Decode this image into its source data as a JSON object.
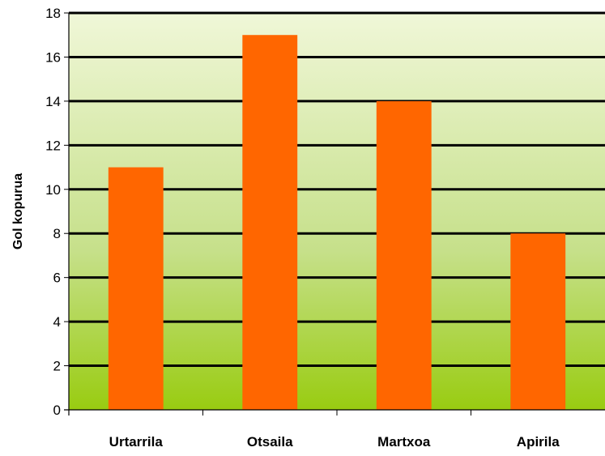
{
  "chart_data": {
    "type": "bar",
    "title": "",
    "xlabel": "",
    "ylabel": "Gol kopurua",
    "categories": [
      "Urtarrila",
      "Otsaila",
      "Martxoa",
      "Apirila"
    ],
    "series": [
      {
        "values": [
          11,
          17,
          14,
          8
        ]
      }
    ],
    "ylim": [
      0,
      18
    ],
    "yticks": [
      "0",
      "2",
      "4",
      "6",
      "8",
      "10",
      "12",
      "14",
      "16",
      "18"
    ],
    "grid": true,
    "legend": "none",
    "colors": {
      "bar": "#ff6600",
      "background_top": "#f0f7d8",
      "background_bottom": "#99cc11",
      "gridline": "#000000",
      "axis": "#000000"
    }
  }
}
